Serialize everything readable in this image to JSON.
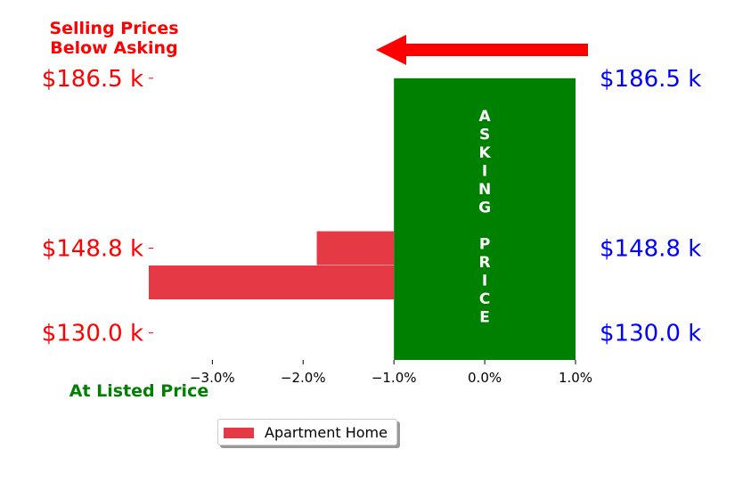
{
  "chart_data": {
    "type": "bar",
    "orientation": "horizontal",
    "title": "Selling Prices\nBelow Asking",
    "annotation_bottom": "At Listed Price",
    "asking_label": "ASKING PRICE",
    "series": [
      {
        "name": "Apartment Home",
        "color": "#e63946",
        "values": [
          -1.85,
          -3.7
        ]
      }
    ],
    "bar_positions_k": [
      148.8,
      141.2
    ],
    "asking_band": {
      "x_from": -1.0,
      "x_to": 1.0,
      "color": "#008000"
    },
    "xlim": [
      -3.7,
      1.0
    ],
    "ylim": [
      124.0,
      192.0
    ],
    "x_ticks": [
      -3.0,
      -2.0,
      -1.0,
      0.0,
      1.0
    ],
    "x_tick_labels": [
      "−3.0%",
      "−2.0%",
      "−1.0%",
      "0.0%",
      "1.0%"
    ],
    "y_ticks": [
      186.5,
      148.8,
      130.0
    ],
    "y_tick_labels_left": [
      "$186.5 k",
      "$148.8 k",
      "$130.0 k"
    ],
    "y_tick_labels_right": [
      "$186.5 k",
      "$148.8 k",
      "$130.0 k"
    ],
    "legend_placement": "bottom-center",
    "arrow_direction": "left",
    "colors": {
      "left_labels": "#ff0000",
      "right_labels": "#0000ff",
      "title": "#ff0000",
      "bottom_annotation": "#008000",
      "arrow": "#ff0000",
      "asking_text": "#ffffff"
    }
  }
}
